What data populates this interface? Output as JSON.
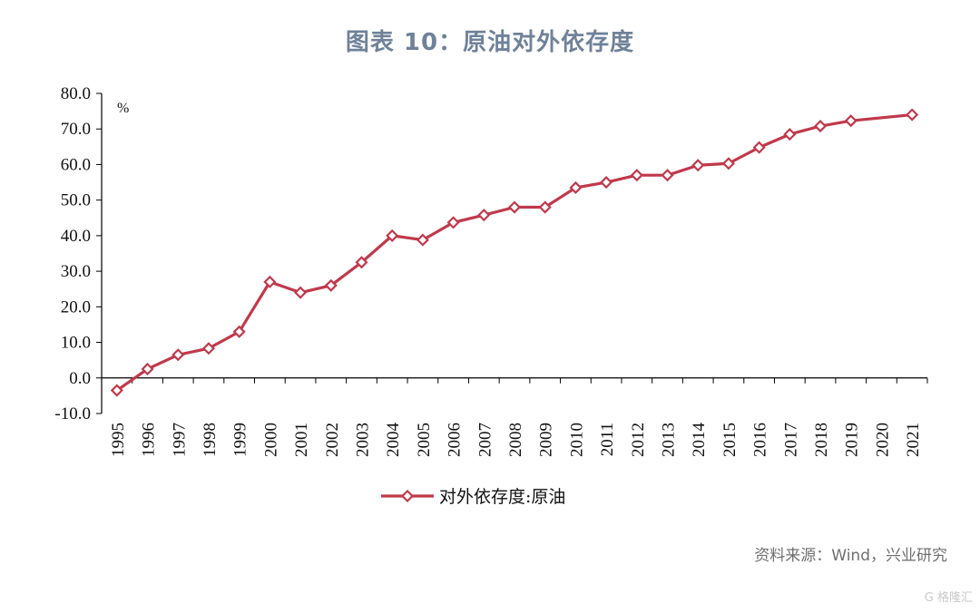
{
  "title": "图表 10：原油对外依存度",
  "source": "资料来源：Wind，兴业研究",
  "watermark": "G 格隆汇",
  "chart_data": {
    "type": "line",
    "title": "图表 10：原油对外依存度",
    "unit_label": "%",
    "xlabel": "",
    "ylabel": "",
    "ylim": [
      -10,
      80
    ],
    "yticks": [
      "80.0",
      "70.0",
      "60.0",
      "50.0",
      "40.0",
      "30.0",
      "20.0",
      "10.0",
      "0.0",
      "-10.0"
    ],
    "grid": false,
    "legend_position": "bottom",
    "categories": [
      "1995",
      "1996",
      "1997",
      "1998",
      "1999",
      "2000",
      "2001",
      "2002",
      "2003",
      "2004",
      "2005",
      "2006",
      "2007",
      "2008",
      "2009",
      "2010",
      "2011",
      "2012",
      "2013",
      "2014",
      "2015",
      "2016",
      "2017",
      "2018",
      "2019",
      "2020",
      "2021"
    ],
    "series": [
      {
        "name": "对外依存度:原油",
        "color": "#c0394b",
        "values": [
          -3.5,
          2.5,
          6.5,
          8.3,
          13.0,
          27.0,
          24.0,
          26.0,
          32.5,
          40.0,
          38.8,
          43.7,
          45.8,
          48.0,
          48.0,
          53.5,
          55.0,
          57.0,
          57.0,
          59.8,
          60.3,
          64.8,
          68.5,
          70.8,
          72.3,
          null,
          74.0
        ]
      }
    ]
  }
}
